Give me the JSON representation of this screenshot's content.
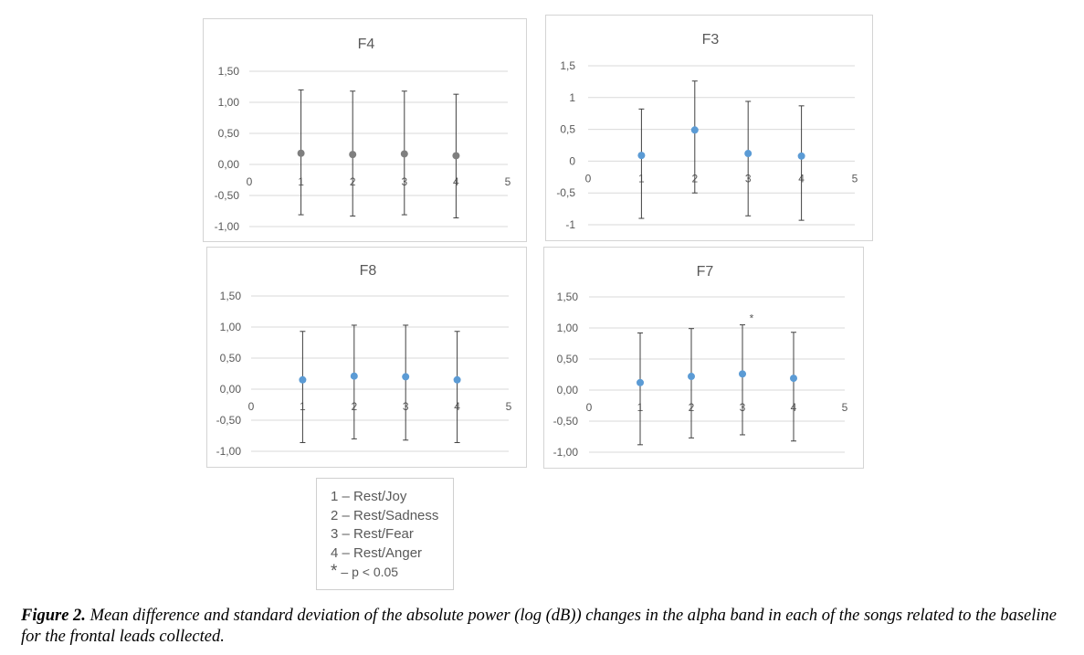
{
  "chart_data": [
    {
      "type": "scatter",
      "title": "F4",
      "marker_color": "#7f7f7f",
      "x": [
        1,
        2,
        3,
        4
      ],
      "y": [
        0.18,
        0.16,
        0.17,
        0.14
      ],
      "y_upper": [
        1.2,
        1.18,
        1.18,
        1.13
      ],
      "y_lower": [
        -0.81,
        -0.83,
        -0.81,
        -0.86
      ],
      "xlim": [
        0,
        5
      ],
      "ylim": [
        -1.0,
        1.5
      ],
      "x_ticks": [
        "0",
        "1",
        "2",
        "3",
        "4",
        "5"
      ],
      "y_ticks": [
        {
          "v": 1.5,
          "label": "1,50"
        },
        {
          "v": 1.0,
          "label": "1,00"
        },
        {
          "v": 0.5,
          "label": "0,50"
        },
        {
          "v": 0.0,
          "label": "0,00"
        },
        {
          "v": -0.5,
          "label": "-0,50"
        },
        {
          "v": -1.0,
          "label": "-1,00"
        }
      ],
      "annotations": []
    },
    {
      "type": "scatter",
      "title": "F3",
      "marker_color": "#5b9bd5",
      "x": [
        1,
        2,
        3,
        4
      ],
      "y": [
        0.09,
        0.49,
        0.12,
        0.08
      ],
      "y_upper": [
        0.82,
        1.26,
        0.94,
        0.87
      ],
      "y_lower": [
        -0.9,
        -0.5,
        -0.86,
        -0.93
      ],
      "xlim": [
        0,
        5
      ],
      "ylim": [
        -1,
        1.5
      ],
      "x_ticks": [
        "0",
        "1",
        "2",
        "3",
        "4",
        "5"
      ],
      "y_ticks": [
        {
          "v": 1.5,
          "label": "1,5"
        },
        {
          "v": 1,
          "label": "1"
        },
        {
          "v": 0.5,
          "label": "0,5"
        },
        {
          "v": 0,
          "label": "0"
        },
        {
          "v": -0.5,
          "label": "-0,5"
        },
        {
          "v": -1,
          "label": "-1"
        }
      ],
      "annotations": []
    },
    {
      "type": "scatter",
      "title": "F8",
      "marker_color": "#5b9bd5",
      "x": [
        1,
        2,
        3,
        4
      ],
      "y": [
        0.15,
        0.21,
        0.2,
        0.15
      ],
      "y_upper": [
        0.93,
        1.03,
        1.03,
        0.93
      ],
      "y_lower": [
        -0.86,
        -0.8,
        -0.82,
        -0.86
      ],
      "xlim": [
        0,
        5
      ],
      "ylim": [
        -1.0,
        1.5
      ],
      "x_ticks": [
        "0",
        "1",
        "2",
        "3",
        "4",
        "5"
      ],
      "y_ticks": [
        {
          "v": 1.5,
          "label": "1,50"
        },
        {
          "v": 1.0,
          "label": "1,00"
        },
        {
          "v": 0.5,
          "label": "0,50"
        },
        {
          "v": 0.0,
          "label": "0,00"
        },
        {
          "v": -0.5,
          "label": "-0,50"
        },
        {
          "v": -1.0,
          "label": "-1,00"
        }
      ],
      "annotations": []
    },
    {
      "type": "scatter",
      "title": "F7",
      "marker_color": "#5b9bd5",
      "x": [
        1,
        2,
        3,
        4
      ],
      "y": [
        0.12,
        0.22,
        0.26,
        0.19
      ],
      "y_upper": [
        0.92,
        0.99,
        1.05,
        0.93
      ],
      "y_lower": [
        -0.88,
        -0.77,
        -0.72,
        -0.82
      ],
      "xlim": [
        0,
        5
      ],
      "ylim": [
        -1.0,
        1.5
      ],
      "x_ticks": [
        "0",
        "1",
        "2",
        "3",
        "4",
        "5"
      ],
      "y_ticks": [
        {
          "v": 1.5,
          "label": "1,50"
        },
        {
          "v": 1.0,
          "label": "1,00"
        },
        {
          "v": 0.5,
          "label": "0,50"
        },
        {
          "v": 0.0,
          "label": "0,00"
        },
        {
          "v": -0.5,
          "label": "-0,50"
        },
        {
          "v": -1.0,
          "label": "-1,00"
        }
      ],
      "annotations": [
        {
          "x": 3,
          "text": "*"
        }
      ]
    }
  ],
  "legend": {
    "items": [
      "1 – Rest/Joy",
      "2 – Rest/Sadness",
      "3 – Rest/Fear",
      "4 – Rest/Anger"
    ],
    "sig_symbol": "*",
    "sig_text": "– p < 0.05"
  },
  "caption": {
    "label": "Figure 2.",
    "text": " Mean difference and standard deviation of the absolute power (log (dB)) changes in the alpha band in each of the songs related to the baseline for the frontal leads collected."
  },
  "colors": {
    "grid": "#d9d9d9",
    "axis_text": "#595959",
    "error_bar": "#404040"
  }
}
